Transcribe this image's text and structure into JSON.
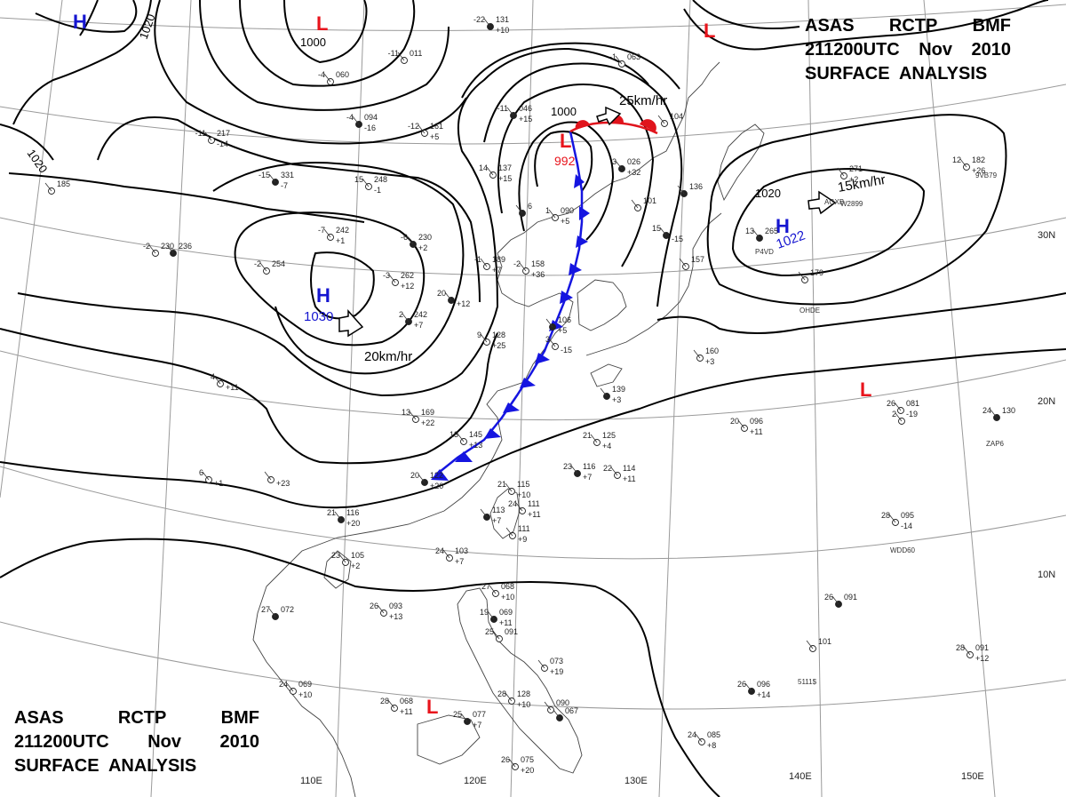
{
  "header": {
    "line1": [
      "ASAS",
      "RCTP",
      "BMF"
    ],
    "line2": [
      "211200UTC",
      "Nov",
      "2010"
    ],
    "line3": "SURFACE  ANALYSIS"
  },
  "colors": {
    "isobar": "#000000",
    "low": "#e8141c",
    "high": "#1515d0",
    "cold_front": "#1515e0",
    "warm_front": "#e0141c",
    "graticule": "#9a9a9a",
    "coast": "#444444"
  },
  "graticule": {
    "lon_labels": [
      "110E",
      "120E",
      "130E",
      "140E",
      "150E"
    ],
    "lat_labels": [
      "30N",
      "20N",
      "10N"
    ]
  },
  "systems": [
    {
      "id": "low-nw",
      "symbol": "L",
      "pressure": ""
    },
    {
      "id": "low-ne",
      "symbol": "L",
      "pressure": ""
    },
    {
      "id": "low-main",
      "symbol": "L",
      "pressure": "992"
    },
    {
      "id": "low-east",
      "symbol": "L",
      "pressure": ""
    },
    {
      "id": "low-south",
      "symbol": "L",
      "pressure": ""
    },
    {
      "id": "high-nw",
      "symbol": "H",
      "pressure": ""
    },
    {
      "id": "high-china",
      "symbol": "H",
      "pressure": "1030"
    },
    {
      "id": "high-pacific",
      "symbol": "H",
      "pressure": "1022"
    }
  ],
  "movement_labels": [
    "25km/hr",
    "20km/hr",
    "15km/hr"
  ],
  "isobar_labels": [
    "1020",
    "1000",
    "1020",
    "1000",
    "1020"
  ],
  "stations": [
    {
      "t": "-22",
      "p": "131",
      "d": "+10"
    },
    {
      "t": "-11",
      "p": "011",
      "d": ""
    },
    {
      "t": "-4",
      "p": "060",
      "d": ""
    },
    {
      "t": "-4",
      "p": "094",
      "d": "-16"
    },
    {
      "t": "-12",
      "p": "161",
      "d": "+5"
    },
    {
      "t": "-11",
      "p": "217",
      "d": "-14"
    },
    {
      "t": "-15",
      "p": "331",
      "d": "-7"
    },
    {
      "t": "15",
      "p": "248",
      "d": "-1"
    },
    {
      "t": "-7",
      "p": "242",
      "d": "+1"
    },
    {
      "t": "-6",
      "p": "230",
      "d": "+2"
    },
    {
      "t": "-2",
      "p": "254",
      "d": ""
    },
    {
      "t": "-3",
      "p": "262",
      "d": "+12"
    },
    {
      "t": "2",
      "p": "242",
      "d": "+7"
    },
    {
      "t": "-1",
      "p": "189",
      "d": "+7"
    },
    {
      "t": "-2",
      "p": "158",
      "d": "+36"
    },
    {
      "t": "20",
      "p": "",
      "d": "+12"
    },
    {
      "t": "14",
      "p": "137",
      "d": "+15"
    },
    {
      "t": "-2",
      "p": "230",
      "d": ""
    },
    {
      "t": "-11",
      "p": "046",
      "d": "+15"
    },
    {
      "t": "1",
      "p": "090",
      "d": "+5"
    },
    {
      "t": "-1",
      "p": "063",
      "d": ""
    },
    {
      "t": "3",
      "p": "026",
      "d": "+32"
    },
    {
      "t": "",
      "p": "104",
      "d": ""
    },
    {
      "t": "",
      "p": "101",
      "d": ""
    },
    {
      "t": "",
      "p": "136",
      "d": ""
    },
    {
      "t": "9",
      "p": "128",
      "d": "+25"
    },
    {
      "t": "",
      "p": "157",
      "d": ""
    },
    {
      "t": "",
      "p": "106",
      "d": "+5"
    },
    {
      "t": "13",
      "p": "169",
      "d": "+22"
    },
    {
      "t": "13",
      "p": "145",
      "d": "+13"
    },
    {
      "t": "20",
      "p": "122",
      "d": "+20"
    },
    {
      "t": "21",
      "p": "115",
      "d": "+10"
    },
    {
      "t": "24",
      "p": "111",
      "d": "+11"
    },
    {
      "t": "21",
      "p": "116",
      "d": "+20"
    },
    {
      "t": "23",
      "p": "105",
      "d": "+2"
    },
    {
      "t": "24",
      "p": "103",
      "d": "+7"
    },
    {
      "t": "",
      "p": "113",
      "d": "+7"
    },
    {
      "t": "",
      "p": "111",
      "d": "+9"
    },
    {
      "t": "21",
      "p": "125",
      "d": "+4"
    },
    {
      "t": "23",
      "p": "116",
      "d": "+7"
    },
    {
      "t": "22",
      "p": "114",
      "d": "+11"
    },
    {
      "t": "",
      "p": "160",
      "d": "+3"
    },
    {
      "t": "",
      "p": "139",
      "d": "+3"
    },
    {
      "t": "20",
      "p": "096",
      "d": "+11"
    },
    {
      "t": "26",
      "p": "081",
      "d": "-19"
    },
    {
      "t": "24",
      "p": "130",
      "d": ""
    },
    {
      "t": "12",
      "p": "182",
      "d": "+26"
    },
    {
      "t": "",
      "p": "271",
      "d": "+2"
    },
    {
      "t": "13",
      "p": "265",
      "d": ""
    },
    {
      "t": "",
      "p": "179",
      "d": ""
    },
    {
      "t": "28",
      "p": "095",
      "d": "-14"
    },
    {
      "t": "26",
      "p": "091",
      "d": ""
    },
    {
      "t": "",
      "p": "101",
      "d": ""
    },
    {
      "t": "28",
      "p": "091",
      "d": "+12"
    },
    {
      "t": "26",
      "p": "096",
      "d": "+14"
    },
    {
      "t": "24",
      "p": "085",
      "d": "+8"
    },
    {
      "t": "26",
      "p": "093",
      "d": "+13"
    },
    {
      "t": "27",
      "p": "072",
      "d": ""
    },
    {
      "t": "24",
      "p": "069",
      "d": "+10"
    },
    {
      "t": "28",
      "p": "068",
      "d": "+11"
    },
    {
      "t": "25",
      "p": "077",
      "d": "+7"
    },
    {
      "t": "28",
      "p": "128",
      "d": "+10"
    },
    {
      "t": "",
      "p": "090",
      "d": ""
    },
    {
      "t": "",
      "p": "067",
      "d": ""
    },
    {
      "t": "26",
      "p": "075",
      "d": "+20"
    },
    {
      "t": "27",
      "p": "068",
      "d": "+10"
    },
    {
      "t": "19",
      "p": "069",
      "d": "+11"
    },
    {
      "t": "25",
      "p": "091",
      "d": ""
    },
    {
      "t": "",
      "p": "073",
      "d": "+19"
    },
    {
      "t": "",
      "p": "6",
      "d": ""
    },
    {
      "t": "4",
      "p": "",
      "d": "+11"
    },
    {
      "t": "6",
      "p": "",
      "d": "+1"
    },
    {
      "t": "15",
      "p": "",
      "d": "-15"
    },
    {
      "t": "2",
      "p": "",
      "d": ""
    },
    {
      "t": "",
      "p": "185",
      "d": ""
    },
    {
      "t": "",
      "p": "236",
      "d": ""
    },
    {
      "t": "3",
      "p": "",
      "d": "-15"
    },
    {
      "t": "",
      "p": "",
      "d": "+23"
    }
  ],
  "station_ids": [
    "AGXB",
    "W2899",
    "9VB79",
    "WDD60",
    "OHDE",
    "P4VD",
    "ZAP6",
    "5111$"
  ]
}
